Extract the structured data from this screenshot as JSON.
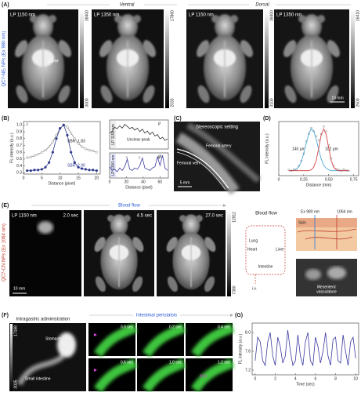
{
  "panel_a": {
    "label": "(A)",
    "side_label": "QC7-NEᵢ NPs (Ex 980 nm)",
    "ventral": "Ventral",
    "dorsal": "Dorsal",
    "images": [
      {
        "filter": "LP 1150 nm",
        "cbar_max": "38400",
        "cbar_min": "3000"
      },
      {
        "filter": "LP 1350 nm",
        "cbar_max": "17860",
        "cbar_min": "2033"
      },
      {
        "filter": "LP 1150 nm",
        "cbar_max": "38400",
        "cbar_min": "3100"
      },
      {
        "filter": "LP 1350 nm",
        "cbar_max": "16410",
        "cbar_min": "2500"
      }
    ],
    "organ": "Liver",
    "scale_bar": "10 mm"
  },
  "panel_b": {
    "label": "(B)",
    "sub": [
      "i",
      "ii",
      "iii"
    ]
  },
  "panel_c": {
    "label": "(C)",
    "title": "Stereoscopic setting",
    "artery": "Femoral artery",
    "vein": "Femoral vein",
    "scale_bar": "5 mm"
  },
  "panel_d": {
    "label": "(D)"
  },
  "panel_e": {
    "label": "(E)",
    "side_label": "QC7-CN NPs (Ex 1064 nm)",
    "flow": "Blood flow",
    "filter": "LP 1150 nm",
    "times": [
      "2.0 sec",
      "4.5 sec",
      "27.0 sec"
    ],
    "cbar_max": "12812",
    "cbar_min": "7380",
    "scale_bar": "10 mm",
    "diagram": {
      "title": "Blood flow",
      "lung": "Lung",
      "heart": "Heart",
      "liver": "Liver",
      "intestine": "Intestine",
      "iv": "i.v."
    },
    "ex": "Ex 980 nm",
    "em": "1064 nm",
    "skin": "Skin",
    "vasculature": [
      "Mesenteric",
      "vasculature"
    ]
  },
  "panel_f": {
    "label": "(F)",
    "title": "Intragastric administration",
    "peristalsis": "Intestinal peristalsis",
    "stomach": "Stomach",
    "intestine": "Small intestine",
    "cbar_max": "17188",
    "cbar_min": "3035",
    "times": [
      "0.0 sec",
      "0.2 sec",
      "0.4 sec",
      "0.6 sec",
      "1.0 sec",
      "1.2 sec"
    ],
    "roi": "ROI"
  },
  "panel_g": {
    "label": "(G)"
  },
  "chart_data": [
    {
      "type": "line",
      "xlabel": "Distance (pixel)",
      "ylabel": "FL intensity (a.u.)",
      "x": [
        1,
        2,
        3,
        4,
        5,
        6,
        7,
        8,
        9,
        10,
        11,
        12,
        13,
        14,
        15,
        16,
        17,
        18,
        19,
        20
      ],
      "xlim": [
        0,
        21
      ],
      "xticks": [
        0,
        5,
        10,
        15,
        20
      ],
      "ylim": [
        0.28,
        1.05
      ],
      "yticks": [
        0.3,
        0.4,
        0.5,
        0.6,
        0.7,
        0.8,
        0.9,
        {
          "value": 1,
          "label": "1.0"
        }
      ],
      "series": [
        {
          "color": "#888888",
          "marker_fill": "#ffffff",
          "values": [
            0.52,
            0.53,
            0.55,
            0.57,
            0.6,
            0.63,
            0.68,
            0.75,
            0.85,
            0.95,
            1.0,
            0.97,
            0.88,
            0.8,
            0.73,
            0.68,
            0.65,
            0.63,
            0.62,
            0.6
          ]
        },
        {
          "color": "#2e3a8c",
          "marker_fill": "#2e3a8c",
          "values": [
            0.33,
            0.33,
            0.34,
            0.34,
            0.35,
            0.38,
            0.45,
            0.6,
            0.8,
            0.95,
            1.0,
            0.85,
            0.6,
            0.45,
            0.38,
            0.36,
            0.35,
            0.34,
            0.34,
            0.33
          ]
        }
      ],
      "annotations": [
        "SBR: 1.83",
        "SBR: 2.90"
      ]
    },
    {
      "type": "line",
      "ylabel": "LP 1150 nm",
      "x": [
        0,
        3,
        6,
        9,
        12,
        15,
        18,
        21,
        24,
        27,
        30,
        33,
        36,
        39,
        42,
        45,
        48,
        51,
        54,
        57,
        60,
        63,
        66,
        69
      ],
      "xlim": [
        0,
        70
      ],
      "ylim": [
        0,
        1
      ],
      "series": [
        {
          "color": "#333333",
          "values": [
            0.55,
            0.6,
            0.75,
            0.7,
            0.8,
            0.72,
            0.85,
            0.78,
            0.7,
            0.75,
            0.65,
            0.72,
            0.6,
            0.68,
            0.55,
            0.62,
            0.5,
            0.58,
            0.45,
            0.5,
            0.35,
            0.4,
            0.3,
            0.35
          ]
        }
      ],
      "annotations": [
        "Unclear peak"
      ]
    },
    {
      "type": "line",
      "xlabel": "Distance (pixel)",
      "ylabel": "LP 1350 nm",
      "x": [
        0,
        3,
        6,
        9,
        12,
        15,
        18,
        21,
        24,
        27,
        30,
        33,
        36,
        39,
        42,
        45,
        48,
        51,
        54,
        57,
        60,
        63,
        66,
        69
      ],
      "xlim": [
        0,
        70
      ],
      "xticks": [
        0,
        20,
        40,
        60
      ],
      "ylim": [
        0,
        1
      ],
      "series": [
        {
          "color": "#3a3aa0",
          "values": [
            0.45,
            0.3,
            0.35,
            0.25,
            0.4,
            0.3,
            0.45,
            0.75,
            0.35,
            0.3,
            0.4,
            0.35,
            0.5,
            0.8,
            0.4,
            0.35,
            0.3,
            0.4,
            0.45,
            0.85,
            0.5,
            0.9,
            0.4,
            0.3
          ]
        }
      ]
    },
    {
      "type": "line",
      "xlabel": "Distance (mm)",
      "ylabel": "FL intensity (a.u.)",
      "x": [
        0.1,
        0.125,
        0.15,
        0.175,
        0.2,
        0.225,
        0.25,
        0.275,
        0.3,
        0.325,
        0.35,
        0.375,
        0.4,
        0.425,
        0.45,
        0.475,
        0.5,
        0.525,
        0.55,
        0.575,
        0.6,
        0.625,
        0.65,
        0.675,
        0.7
      ],
      "xlim": [
        0,
        0.8
      ],
      "xticks": [
        0,
        0.25,
        {
          "value": 0.5,
          "label": "0.50"
        },
        0.75
      ],
      "ylim": [
        0,
        1.1
      ],
      "series": [
        {
          "color": "#888888",
          "style": "points",
          "values": [
            0.12,
            0.1,
            0.13,
            0.12,
            0.2,
            0.3,
            0.45,
            0.7,
            0.85,
            0.97,
            0.9,
            0.8,
            0.72,
            0.85,
            1.0,
            0.9,
            0.62,
            0.35,
            0.2,
            0.14,
            0.12,
            0.1,
            0.13,
            0.11,
            0.1
          ]
        },
        {
          "color": "#3aa0d0",
          "style": "line",
          "values": [
            0.1,
            0.1,
            0.11,
            0.13,
            0.18,
            0.28,
            0.45,
            0.66,
            0.85,
            0.95,
            0.91,
            0.74,
            0.53,
            0.34,
            0.21,
            0.15,
            0.12,
            0.1,
            0.1,
            0.1,
            0.1,
            0.1,
            0.1,
            0.1,
            0.1
          ]
        },
        {
          "color": "#d03030",
          "style": "line",
          "values": [
            0.1,
            0.1,
            0.1,
            0.1,
            0.1,
            0.1,
            0.1,
            0.1,
            0.1,
            0.12,
            0.17,
            0.31,
            0.56,
            0.83,
            0.95,
            0.83,
            0.56,
            0.31,
            0.17,
            0.12,
            0.1,
            0.1,
            0.1,
            0.1,
            0.1
          ]
        }
      ],
      "annotations": [
        "140 μm",
        "102 μm"
      ]
    },
    {
      "type": "line",
      "xlabel": "Time (sec)",
      "ylabel": "FL intensity (a.u.)",
      "x": [
        0,
        0.25,
        0.5,
        0.75,
        1,
        1.25,
        1.5,
        1.75,
        2,
        2.25,
        2.5,
        2.75,
        3,
        3.25,
        3.5,
        3.75,
        4,
        4.25,
        4.5,
        4.75,
        5,
        5.25,
        5.5,
        5.75,
        6,
        6.25,
        6.5,
        6.75,
        7,
        7.25,
        7.5,
        7.75,
        8,
        8.25,
        8.5,
        8.75,
        9,
        9.25,
        9.5,
        9.75,
        10
      ],
      "xlim": [
        -0.3,
        10.3
      ],
      "xticks": [
        0,
        2,
        4,
        6,
        8,
        10
      ],
      "ylim": [
        7.1,
        8.2
      ],
      "yticks": [
        7.2,
        7.6,
        {
          "value": 8,
          "label": "8.0"
        }
      ],
      "series": [
        {
          "color": "#3a3aa0",
          "values": [
            7.4,
            7.9,
            7.8,
            7.4,
            7.3,
            7.8,
            8.0,
            7.5,
            7.3,
            7.9,
            7.7,
            7.35,
            7.5,
            8.05,
            7.6,
            7.3,
            7.4,
            7.95,
            7.5,
            7.3,
            7.8,
            8.0,
            7.4,
            7.3,
            7.9,
            7.7,
            7.35,
            7.6,
            8.0,
            7.5,
            7.3,
            7.85,
            7.9,
            7.4,
            7.35,
            7.95,
            7.6,
            7.3,
            7.8,
            7.9,
            7.45
          ]
        }
      ]
    }
  ]
}
